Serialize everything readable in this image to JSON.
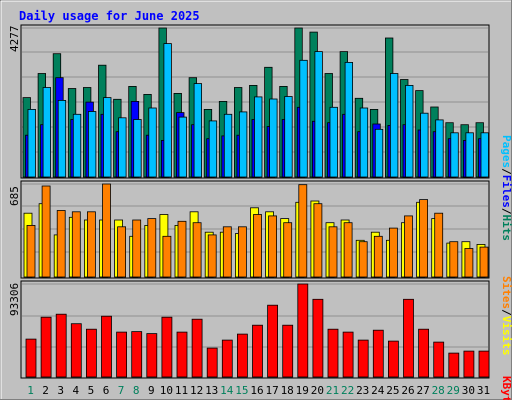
{
  "title": "Daily usage for June 2025",
  "colors": {
    "background": "#c0c0c0",
    "title": "#0000ff",
    "hits": "#00805c",
    "files": "#0000ff",
    "pages": "#00c0ff",
    "visits": "#ffff00",
    "sites": "#ff8000",
    "kbytes": "#ff0000",
    "weekday_label": "#000000",
    "weekend_label": "#00805c"
  },
  "chart_data": [
    {
      "type": "bar",
      "panel": "hits-files-pages",
      "ymax_label": "4277",
      "ymax": 4277,
      "legend": [
        "Pages",
        "/",
        "Files",
        "/",
        "Hits"
      ],
      "categories": [
        "1",
        "2",
        "3",
        "4",
        "5",
        "6",
        "7",
        "8",
        "9",
        "10",
        "11",
        "12",
        "13",
        "14",
        "15",
        "16",
        "17",
        "18",
        "19",
        "20",
        "21",
        "22",
        "23",
        "24",
        "25",
        "26",
        "27",
        "28",
        "29",
        "30",
        "31"
      ],
      "series": [
        {
          "name": "Hits",
          "values": [
            2280,
            2970,
            3540,
            2540,
            2570,
            3210,
            2230,
            2600,
            2370,
            4277,
            2400,
            2850,
            1940,
            2170,
            2570,
            2630,
            3150,
            2600,
            4277,
            4160,
            2970,
            3600,
            2260,
            1940,
            3990,
            2800,
            2480,
            2010,
            1560,
            1500,
            1560
          ]
        },
        {
          "name": "Files",
          "values": [
            1200,
            1500,
            2850,
            1650,
            2150,
            1800,
            1300,
            2170,
            1200,
            1050,
            1850,
            1500,
            1100,
            1180,
            1200,
            1650,
            1450,
            1650,
            2000,
            1600,
            1560,
            1800,
            1300,
            1520,
            1480,
            1500,
            1350,
            1300,
            1100,
            1050,
            1100
          ]
        },
        {
          "name": "Pages",
          "values": [
            1940,
            2570,
            2200,
            1800,
            1880,
            2280,
            1700,
            1650,
            1980,
            3830,
            1720,
            2680,
            1610,
            1800,
            1870,
            2300,
            2240,
            2310,
            3350,
            3600,
            2000,
            3290,
            1980,
            1370,
            2970,
            2630,
            1830,
            1640,
            1270,
            1270,
            1270
          ]
        }
      ]
    },
    {
      "type": "bar",
      "panel": "sites-visits",
      "ymax_label": "685",
      "ymax": 685,
      "legend": [
        "Sites",
        "/",
        "Visits"
      ],
      "categories": [
        "1",
        "2",
        "3",
        "4",
        "5",
        "6",
        "7",
        "8",
        "9",
        "10",
        "11",
        "12",
        "13",
        "14",
        "15",
        "16",
        "17",
        "18",
        "19",
        "20",
        "21",
        "22",
        "23",
        "24",
        "25",
        "26",
        "27",
        "28",
        "29",
        "30",
        "31"
      ],
      "series": [
        {
          "name": "Visits",
          "values": [
            470,
            540,
            310,
            440,
            420,
            420,
            420,
            300,
            380,
            460,
            380,
            480,
            330,
            330,
            320,
            510,
            480,
            430,
            550,
            560,
            400,
            420,
            270,
            330,
            270,
            400,
            550,
            430,
            250,
            260,
            240
          ]
        },
        {
          "name": "Sites",
          "values": [
            380,
            670,
            490,
            480,
            480,
            685,
            370,
            420,
            430,
            300,
            410,
            400,
            310,
            370,
            370,
            460,
            450,
            400,
            680,
            540,
            370,
            400,
            260,
            300,
            360,
            450,
            570,
            470,
            260,
            210,
            220
          ]
        }
      ]
    },
    {
      "type": "bar",
      "panel": "kbytes",
      "ymax_label": "93306",
      "ymax": 93306,
      "legend": [
        "KBytes"
      ],
      "categories": [
        "1",
        "2",
        "3",
        "4",
        "5",
        "6",
        "7",
        "8",
        "9",
        "10",
        "11",
        "12",
        "13",
        "14",
        "15",
        "16",
        "17",
        "18",
        "19",
        "20",
        "21",
        "22",
        "23",
        "24",
        "25",
        "26",
        "27",
        "28",
        "29",
        "30",
        "31"
      ],
      "series": [
        {
          "name": "KBytes",
          "values": [
            38000,
            60000,
            63000,
            53500,
            48000,
            61000,
            45000,
            45500,
            43500,
            60000,
            45000,
            58000,
            29000,
            37000,
            43000,
            52000,
            72000,
            52000,
            93306,
            78000,
            48000,
            45000,
            37000,
            47000,
            36000,
            78000,
            48000,
            35000,
            24000,
            26000,
            26000
          ]
        }
      ]
    }
  ]
}
